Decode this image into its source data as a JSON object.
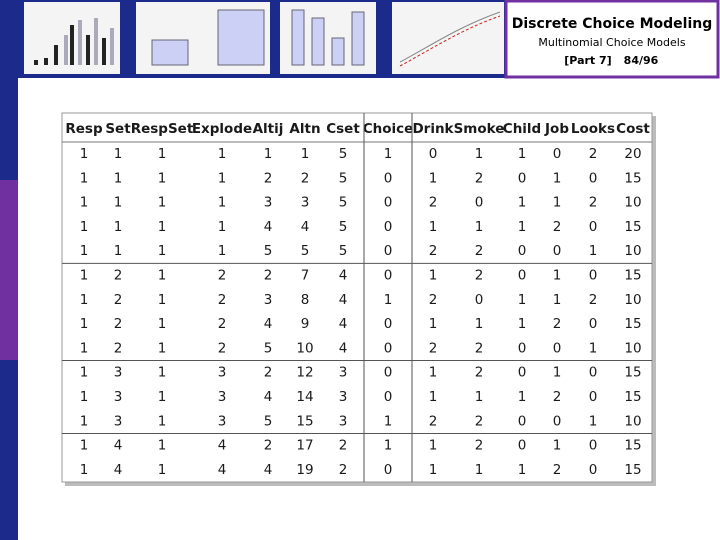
{
  "header": {
    "title": "Discrete Choice Modeling",
    "subtitle": "Multinomial Choice Models",
    "part": "[Part 7]",
    "page": "84/96"
  },
  "table": {
    "columns": [
      "Resp",
      "Set",
      "RespSet",
      "Explode",
      "Altij",
      "Altn",
      "Cset",
      "Choice",
      "Drink",
      "Smoke",
      "Child",
      "Job",
      "Looks",
      "Cost"
    ],
    "rows": [
      [
        1,
        1,
        1,
        1,
        1,
        1,
        5,
        1,
        0,
        1,
        1,
        0,
        2,
        20
      ],
      [
        1,
        1,
        1,
        1,
        2,
        2,
        5,
        0,
        1,
        2,
        0,
        1,
        0,
        15
      ],
      [
        1,
        1,
        1,
        1,
        3,
        3,
        5,
        0,
        2,
        0,
        1,
        1,
        2,
        10
      ],
      [
        1,
        1,
        1,
        1,
        4,
        4,
        5,
        0,
        1,
        1,
        1,
        2,
        0,
        15
      ],
      [
        1,
        1,
        1,
        1,
        5,
        5,
        5,
        0,
        2,
        2,
        0,
        0,
        1,
        10
      ],
      [
        1,
        2,
        1,
        2,
        2,
        7,
        4,
        0,
        1,
        2,
        0,
        1,
        0,
        15
      ],
      [
        1,
        2,
        1,
        2,
        3,
        8,
        4,
        1,
        2,
        0,
        1,
        1,
        2,
        10
      ],
      [
        1,
        2,
        1,
        2,
        4,
        9,
        4,
        0,
        1,
        1,
        1,
        2,
        0,
        15
      ],
      [
        1,
        2,
        1,
        2,
        5,
        10,
        4,
        0,
        2,
        2,
        0,
        0,
        1,
        10
      ],
      [
        1,
        3,
        1,
        3,
        2,
        12,
        3,
        0,
        1,
        2,
        0,
        1,
        0,
        15
      ],
      [
        1,
        3,
        1,
        3,
        4,
        14,
        3,
        0,
        1,
        1,
        1,
        2,
        0,
        15
      ],
      [
        1,
        3,
        1,
        3,
        5,
        15,
        3,
        1,
        2,
        2,
        0,
        0,
        1,
        10
      ],
      [
        1,
        4,
        1,
        4,
        2,
        17,
        2,
        1,
        1,
        2,
        0,
        1,
        0,
        15
      ],
      [
        1,
        4,
        1,
        4,
        4,
        19,
        2,
        0,
        1,
        1,
        1,
        2,
        0,
        15
      ]
    ]
  }
}
